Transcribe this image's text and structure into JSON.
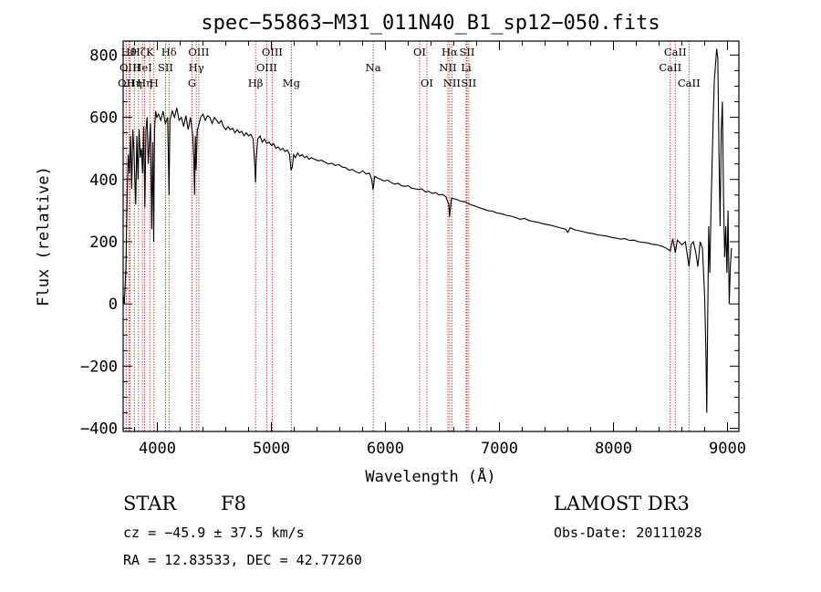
{
  "chart_data": {
    "type": "line",
    "title": "spec−55863−M31_011N40_B1_sp12−050.fits",
    "xlabel": "Wavelength (Å)",
    "ylabel": "Flux (relative)",
    "xlim": [
      3700,
      9100
    ],
    "ylim": [
      -410,
      845
    ],
    "x_ticks": [
      4000,
      5000,
      6000,
      7000,
      8000,
      9000
    ],
    "x_tick_labels": [
      "4000",
      "5000",
      "6000",
      "7000",
      "8000",
      "9000"
    ],
    "y_ticks": [
      -400,
      -200,
      0,
      200,
      400,
      600,
      800
    ],
    "y_tick_labels": [
      "−400",
      "−200",
      "0",
      "200",
      "400",
      "600",
      "800"
    ],
    "series": [
      {
        "name": "flux",
        "points": [
          [
            3700,
            30
          ],
          [
            3710,
            0
          ],
          [
            3725,
            120
          ],
          [
            3735,
            360
          ],
          [
            3745,
            480
          ],
          [
            3755,
            420
          ],
          [
            3765,
            540
          ],
          [
            3775,
            370
          ],
          [
            3785,
            560
          ],
          [
            3795,
            490
          ],
          [
            3800,
            430
          ],
          [
            3810,
            320
          ],
          [
            3820,
            540
          ],
          [
            3830,
            400
          ],
          [
            3840,
            560
          ],
          [
            3850,
            470
          ],
          [
            3860,
            500
          ],
          [
            3870,
            420
          ],
          [
            3880,
            570
          ],
          [
            3890,
            310
          ],
          [
            3900,
            560
          ],
          [
            3910,
            600
          ],
          [
            3920,
            450
          ],
          [
            3930,
            520
          ],
          [
            3940,
            580
          ],
          [
            3950,
            240
          ],
          [
            3960,
            520
          ],
          [
            3968,
            200
          ],
          [
            3975,
            560
          ],
          [
            3985,
            620
          ],
          [
            3995,
            600
          ],
          [
            4010,
            610
          ],
          [
            4030,
            590
          ],
          [
            4050,
            620
          ],
          [
            4070,
            580
          ],
          [
            4090,
            600
          ],
          [
            4102,
            350
          ],
          [
            4110,
            590
          ],
          [
            4130,
            620
          ],
          [
            4150,
            600
          ],
          [
            4170,
            630
          ],
          [
            4190,
            590
          ],
          [
            4210,
            600
          ],
          [
            4230,
            570
          ],
          [
            4250,
            605
          ],
          [
            4270,
            560
          ],
          [
            4290,
            600
          ],
          [
            4310,
            540
          ],
          [
            4320,
            470
          ],
          [
            4326,
            350
          ],
          [
            4333,
            540
          ],
          [
            4340,
            430
          ],
          [
            4350,
            560
          ],
          [
            4360,
            570
          ],
          [
            4380,
            600
          ],
          [
            4400,
            610
          ],
          [
            4420,
            590
          ],
          [
            4440,
            605
          ],
          [
            4460,
            600
          ],
          [
            4480,
            580
          ],
          [
            4500,
            600
          ],
          [
            4520,
            590
          ],
          [
            4540,
            580
          ],
          [
            4560,
            590
          ],
          [
            4580,
            570
          ],
          [
            4600,
            560
          ],
          [
            4620,
            570
          ],
          [
            4640,
            560
          ],
          [
            4660,
            565
          ],
          [
            4680,
            550
          ],
          [
            4700,
            560
          ],
          [
            4720,
            550
          ],
          [
            4740,
            555
          ],
          [
            4760,
            540
          ],
          [
            4780,
            550
          ],
          [
            4800,
            540
          ],
          [
            4820,
            545
          ],
          [
            4840,
            530
          ],
          [
            4855,
            440
          ],
          [
            4861,
            390
          ],
          [
            4868,
            470
          ],
          [
            4880,
            530
          ],
          [
            4900,
            540
          ],
          [
            4920,
            520
          ],
          [
            4940,
            530
          ],
          [
            4960,
            515
          ],
          [
            4980,
            520
          ],
          [
            5000,
            510
          ],
          [
            5020,
            515
          ],
          [
            5040,
            500
          ],
          [
            5060,
            505
          ],
          [
            5080,
            495
          ],
          [
            5100,
            500
          ],
          [
            5120,
            490
          ],
          [
            5140,
            495
          ],
          [
            5160,
            480
          ],
          [
            5172,
            430
          ],
          [
            5183,
            440
          ],
          [
            5195,
            480
          ],
          [
            5210,
            470
          ],
          [
            5230,
            485
          ],
          [
            5250,
            475
          ],
          [
            5270,
            480
          ],
          [
            5290,
            470
          ],
          [
            5310,
            475
          ],
          [
            5330,
            465
          ],
          [
            5350,
            470
          ],
          [
            5380,
            465
          ],
          [
            5410,
            460
          ],
          [
            5440,
            462
          ],
          [
            5470,
            455
          ],
          [
            5500,
            450
          ],
          [
            5530,
            452
          ],
          [
            5560,
            445
          ],
          [
            5590,
            448
          ],
          [
            5620,
            440
          ],
          [
            5650,
            438
          ],
          [
            5680,
            430
          ],
          [
            5710,
            432
          ],
          [
            5740,
            425
          ],
          [
            5770,
            420
          ],
          [
            5800,
            428
          ],
          [
            5830,
            418
          ],
          [
            5860,
            420
          ],
          [
            5880,
            400
          ],
          [
            5890,
            370
          ],
          [
            5896,
            375
          ],
          [
            5905,
            410
          ],
          [
            5930,
            405
          ],
          [
            5960,
            400
          ],
          [
            5990,
            395
          ],
          [
            6020,
            398
          ],
          [
            6050,
            390
          ],
          [
            6080,
            385
          ],
          [
            6110,
            388
          ],
          [
            6140,
            380
          ],
          [
            6170,
            378
          ],
          [
            6200,
            380
          ],
          [
            6230,
            372
          ],
          [
            6260,
            370
          ],
          [
            6290,
            368
          ],
          [
            6320,
            370
          ],
          [
            6350,
            360
          ],
          [
            6380,
            362
          ],
          [
            6410,
            355
          ],
          [
            6440,
            358
          ],
          [
            6470,
            350
          ],
          [
            6500,
            352
          ],
          [
            6530,
            345
          ],
          [
            6555,
            320
          ],
          [
            6563,
            280
          ],
          [
            6570,
            310
          ],
          [
            6580,
            340
          ],
          [
            6600,
            338
          ],
          [
            6630,
            335
          ],
          [
            6660,
            330
          ],
          [
            6700,
            328
          ],
          [
            6740,
            320
          ],
          [
            6780,
            315
          ],
          [
            6820,
            310
          ],
          [
            6860,
            305
          ],
          [
            6900,
            300
          ],
          [
            6940,
            298
          ],
          [
            6980,
            292
          ],
          [
            7020,
            290
          ],
          [
            7060,
            285
          ],
          [
            7100,
            282
          ],
          [
            7140,
            278
          ],
          [
            7180,
            272
          ],
          [
            7220,
            275
          ],
          [
            7260,
            268
          ],
          [
            7300,
            265
          ],
          [
            7340,
            262
          ],
          [
            7380,
            258
          ],
          [
            7420,
            255
          ],
          [
            7460,
            252
          ],
          [
            7500,
            248
          ],
          [
            7540,
            244
          ],
          [
            7580,
            240
          ],
          [
            7600,
            230
          ],
          [
            7620,
            245
          ],
          [
            7660,
            238
          ],
          [
            7700,
            235
          ],
          [
            7740,
            232
          ],
          [
            7780,
            228
          ],
          [
            7820,
            226
          ],
          [
            7860,
            222
          ],
          [
            7900,
            220
          ],
          [
            7940,
            218
          ],
          [
            7980,
            214
          ],
          [
            8020,
            212
          ],
          [
            8060,
            208
          ],
          [
            8100,
            210
          ],
          [
            8140,
            204
          ],
          [
            8180,
            205
          ],
          [
            8220,
            200
          ],
          [
            8260,
            198
          ],
          [
            8300,
            196
          ],
          [
            8340,
            192
          ],
          [
            8380,
            190
          ],
          [
            8420,
            186
          ],
          [
            8460,
            180
          ],
          [
            8498,
            170
          ],
          [
            8520,
            210
          ],
          [
            8542,
            165
          ],
          [
            8560,
            205
          ],
          [
            8600,
            190
          ],
          [
            8630,
            200
          ],
          [
            8662,
            120
          ],
          [
            8680,
            190
          ],
          [
            8700,
            200
          ],
          [
            8720,
            170
          ],
          [
            8740,
            120
          ],
          [
            8760,
            200
          ],
          [
            8780,
            180
          ],
          [
            8790,
            100
          ],
          [
            8800,
            20
          ],
          [
            8810,
            -150
          ],
          [
            8818,
            -350
          ],
          [
            8825,
            -100
          ],
          [
            8835,
            250
          ],
          [
            8845,
            100
          ],
          [
            8855,
            300
          ],
          [
            8865,
            450
          ],
          [
            8875,
            600
          ],
          [
            8885,
            720
          ],
          [
            8895,
            770
          ],
          [
            8905,
            820
          ],
          [
            8915,
            790
          ],
          [
            8925,
            500
          ],
          [
            8935,
            250
          ],
          [
            8945,
            550
          ],
          [
            8955,
            650
          ],
          [
            8965,
            350
          ],
          [
            8975,
            150
          ],
          [
            8985,
            250
          ],
          [
            8995,
            100
          ],
          [
            9005,
            300
          ],
          [
            9015,
            0
          ],
          [
            9025,
            120
          ],
          [
            9035,
            180
          ]
        ]
      }
    ],
    "lines": [
      {
        "wl": 3727,
        "row": 3,
        "label": "OII"
      },
      {
        "wl": 3750,
        "row": 1,
        "label": "Hθ"
      },
      {
        "wl": 3760,
        "row": 2,
        "label": "OIII"
      },
      {
        "wl": 3798,
        "row": 3,
        "label": "Hη"
      },
      {
        "wl": 3835,
        "row": 1,
        "label": "Hζ"
      },
      {
        "wl": 3869,
        "row": 2,
        "label": "HeI"
      },
      {
        "wl": 3889,
        "row": 3,
        "label": "Hη"
      },
      {
        "wl": 3934,
        "row": 1,
        "label": "K"
      },
      {
        "wl": 3970,
        "row": 3,
        "label": "H"
      },
      {
        "wl": 4072,
        "row": 2,
        "label": "SII"
      },
      {
        "wl": 4102,
        "row": 1,
        "label": "Hδ"
      },
      {
        "wl": 4304,
        "row": 3,
        "label": "G"
      },
      {
        "wl": 4341,
        "row": 2,
        "label": "Hγ"
      },
      {
        "wl": 4363,
        "row": 1,
        "label": "OIII"
      },
      {
        "wl": 4861,
        "row": 3,
        "label": "Hβ"
      },
      {
        "wl": 4959,
        "row": 2,
        "label": "OIII"
      },
      {
        "wl": 5007,
        "row": 1,
        "label": "OIII"
      },
      {
        "wl": 5175,
        "row": 3,
        "label": "Mg"
      },
      {
        "wl": 5893,
        "row": 2,
        "label": "Na"
      },
      {
        "wl": 6300,
        "row": 1,
        "label": "OI"
      },
      {
        "wl": 6364,
        "row": 3,
        "label": "OI"
      },
      {
        "wl": 6548,
        "row": 2,
        "label": "NII"
      },
      {
        "wl": 6563,
        "row": 1,
        "label": "Hα"
      },
      {
        "wl": 6583,
        "row": 3,
        "label": "NII"
      },
      {
        "wl": 6708,
        "row": 2,
        "label": "Li"
      },
      {
        "wl": 6716,
        "row": 1,
        "label": "SII"
      },
      {
        "wl": 6731,
        "row": 3,
        "label": "SII"
      },
      {
        "wl": 8498,
        "row": 2,
        "label": "CaII"
      },
      {
        "wl": 8542,
        "row": 1,
        "label": "CaII"
      },
      {
        "wl": 8662,
        "row": 3,
        "label": "CaII"
      }
    ]
  },
  "info": {
    "class_label": "STAR",
    "subclass": "F8",
    "survey": "LAMOST DR3",
    "cz": "cz = −45.9 ± 37.5 km/s",
    "obs_date": "Obs-Date: 20111028",
    "radec": "RA =  12.83533, DEC =  42.77260"
  },
  "colors": {
    "axis": "#000000",
    "spectrum": "#000000",
    "line_marker": "#c0392b"
  }
}
